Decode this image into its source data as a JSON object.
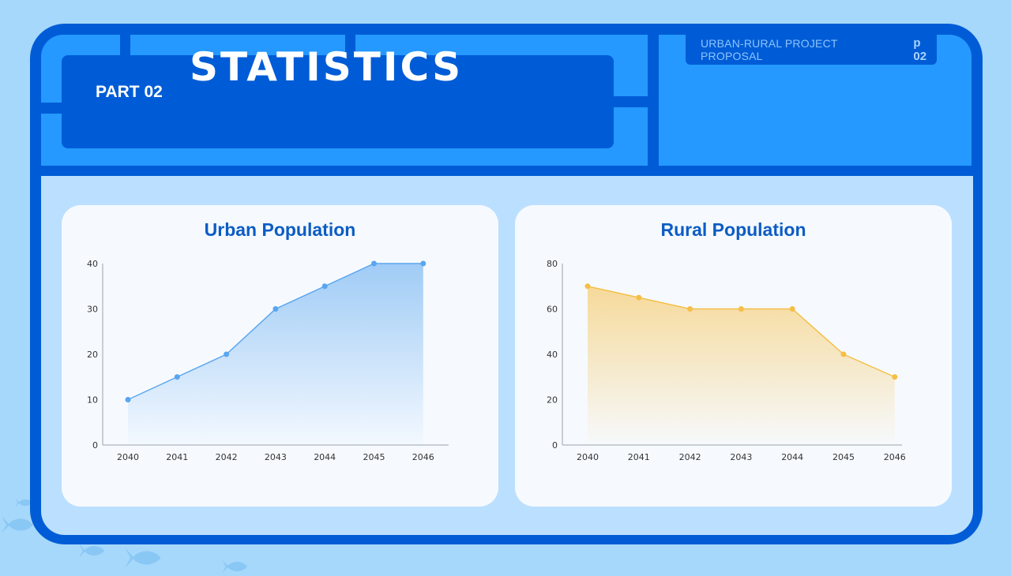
{
  "header": {
    "title": "STATISTICS",
    "part": "PART 02",
    "project": "URBAN-RURAL PROJECT PROPOSAL",
    "page": "p 02"
  },
  "colors": {
    "background": "#a6d8fb",
    "frame": "#005cd6",
    "header_panel": "#2599ff",
    "content_panel": "#bbdfff",
    "card": "#f6faff",
    "urban_line": "#5aa6ee",
    "rural_line": "#f5bf47",
    "card_title": "#0c5cc4"
  },
  "cards": [
    {
      "title": "Urban Population"
    },
    {
      "title": "Rural Population"
    }
  ],
  "chart_data": [
    {
      "type": "area",
      "title": "Urban Population",
      "categories": [
        "2040",
        "2041",
        "2042",
        "2043",
        "2044",
        "2045",
        "2046"
      ],
      "values": [
        10,
        15,
        20,
        30,
        35,
        40,
        40
      ],
      "xlabel": "",
      "ylabel": "",
      "ylim": [
        0,
        40
      ],
      "yticks": [
        0,
        10,
        20,
        30,
        40
      ],
      "grid": false,
      "color": "#5aa6ee"
    },
    {
      "type": "area",
      "title": "Rural Population",
      "categories": [
        "2040",
        "2041",
        "2042",
        "2043",
        "2044",
        "2045",
        "2046"
      ],
      "values": [
        70,
        65,
        60,
        60,
        60,
        40,
        30
      ],
      "xlabel": "",
      "ylabel": "",
      "ylim": [
        0,
        80
      ],
      "yticks": [
        0,
        20,
        40,
        60,
        80
      ],
      "grid": false,
      "color": "#f5bf47"
    }
  ]
}
